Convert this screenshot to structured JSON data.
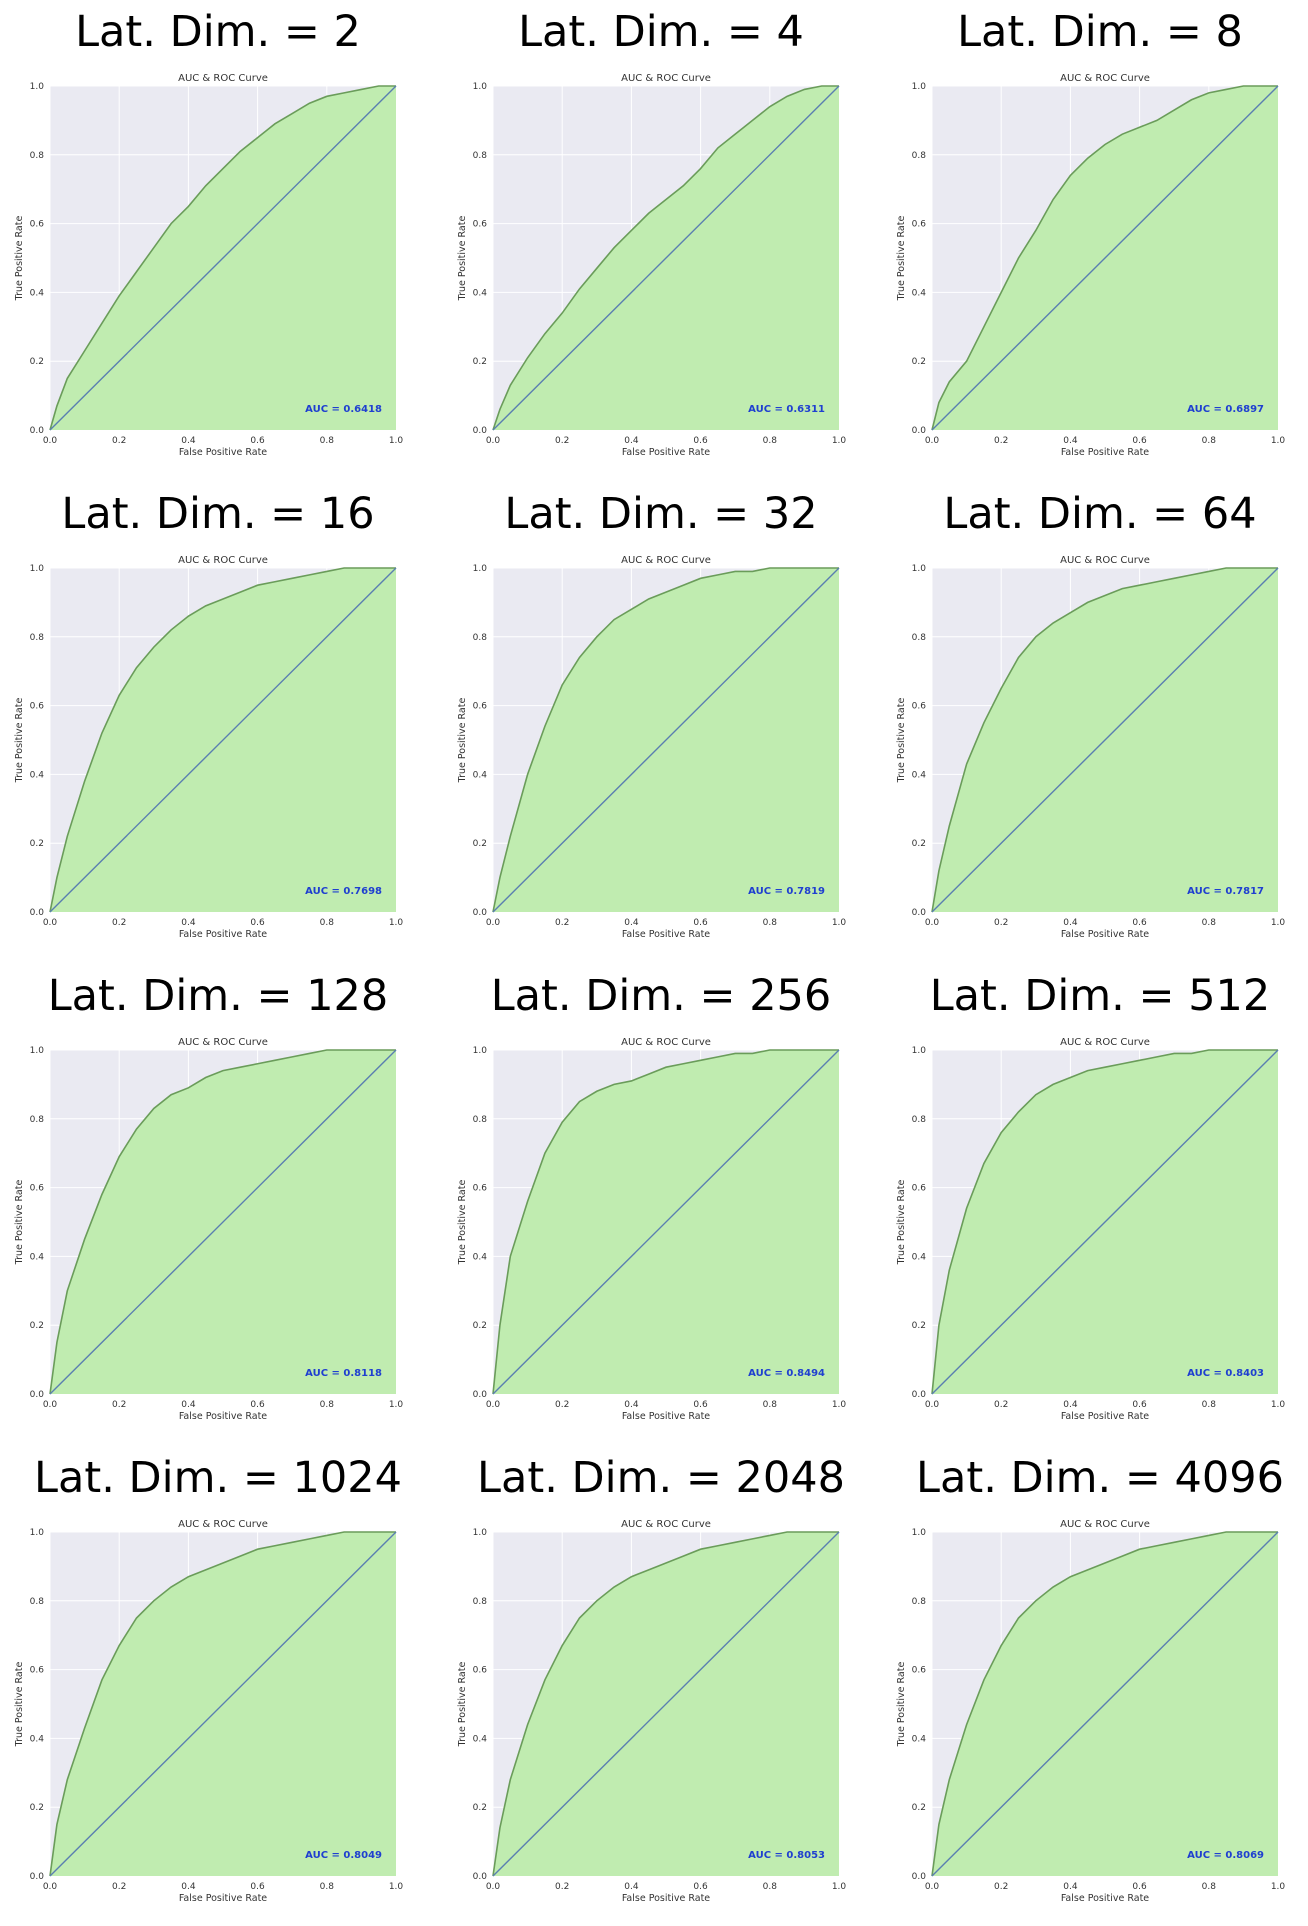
{
  "figure": {
    "panel_titles": [
      "Lat. Dim. = 2",
      "Lat. Dim. = 4",
      "Lat. Dim. = 8",
      "Lat. Dim. = 16",
      "Lat. Dim. = 32",
      "Lat. Dim. = 64",
      "Lat. Dim. = 128",
      "Lat. Dim. = 256",
      "Lat. Dim. = 512",
      "Lat. Dim. = 1024",
      "Lat. Dim. = 2048",
      "Lat. Dim. = 4096"
    ]
  },
  "chart_data": [
    {
      "type": "area",
      "panel_title": "Lat. Dim. = 2",
      "title": "AUC & ROC Curve",
      "xlabel": "False Positive Rate",
      "ylabel": "True Positive Rate",
      "xlim": [
        0,
        1
      ],
      "ylim": [
        0,
        1
      ],
      "xticks": [
        "0.0",
        "0.2",
        "0.4",
        "0.6",
        "0.8",
        "1.0"
      ],
      "yticks": [
        "0.0",
        "0.2",
        "0.4",
        "0.6",
        "0.8",
        "1.0"
      ],
      "grid": true,
      "auc_label": "AUC = 0.6418",
      "diagonal": [
        [
          0,
          0
        ],
        [
          1,
          1
        ]
      ],
      "roc": {
        "x": [
          0,
          0.02,
          0.05,
          0.1,
          0.15,
          0.2,
          0.25,
          0.3,
          0.35,
          0.4,
          0.45,
          0.5,
          0.55,
          0.6,
          0.65,
          0.7,
          0.75,
          0.8,
          0.85,
          0.9,
          0.95,
          1.0
        ],
        "y": [
          0,
          0.07,
          0.15,
          0.23,
          0.31,
          0.39,
          0.46,
          0.53,
          0.6,
          0.65,
          0.71,
          0.76,
          0.81,
          0.85,
          0.89,
          0.92,
          0.95,
          0.97,
          0.98,
          0.99,
          1.0,
          1.0
        ]
      }
    },
    {
      "type": "area",
      "panel_title": "Lat. Dim. = 4",
      "title": "AUC & ROC Curve",
      "xlabel": "False Positive Rate",
      "ylabel": "True Positive Rate",
      "xlim": [
        0,
        1
      ],
      "ylim": [
        0,
        1
      ],
      "xticks": [
        "0.0",
        "0.2",
        "0.4",
        "0.6",
        "0.8",
        "1.0"
      ],
      "yticks": [
        "0.0",
        "0.2",
        "0.4",
        "0.6",
        "0.8",
        "1.0"
      ],
      "grid": true,
      "auc_label": "AUC = 0.6311",
      "diagonal": [
        [
          0,
          0
        ],
        [
          1,
          1
        ]
      ],
      "roc": {
        "x": [
          0,
          0.02,
          0.05,
          0.1,
          0.15,
          0.2,
          0.25,
          0.3,
          0.35,
          0.4,
          0.45,
          0.5,
          0.55,
          0.6,
          0.65,
          0.7,
          0.75,
          0.8,
          0.85,
          0.9,
          0.95,
          1.0
        ],
        "y": [
          0,
          0.06,
          0.13,
          0.21,
          0.28,
          0.34,
          0.41,
          0.47,
          0.53,
          0.58,
          0.63,
          0.67,
          0.71,
          0.76,
          0.82,
          0.86,
          0.9,
          0.94,
          0.97,
          0.99,
          1.0,
          1.0
        ]
      }
    },
    {
      "type": "area",
      "panel_title": "Lat. Dim. = 8",
      "title": "AUC & ROC Curve",
      "xlabel": "False Positive Rate",
      "ylabel": "True Positive Rate",
      "xlim": [
        0,
        1
      ],
      "ylim": [
        0,
        1
      ],
      "xticks": [
        "0.0",
        "0.2",
        "0.4",
        "0.6",
        "0.8",
        "1.0"
      ],
      "yticks": [
        "0.0",
        "0.2",
        "0.4",
        "0.6",
        "0.8",
        "1.0"
      ],
      "grid": true,
      "auc_label": "AUC = 0.6897",
      "diagonal": [
        [
          0,
          0
        ],
        [
          1,
          1
        ]
      ],
      "roc": {
        "x": [
          0,
          0.02,
          0.05,
          0.1,
          0.15,
          0.2,
          0.25,
          0.3,
          0.35,
          0.4,
          0.45,
          0.5,
          0.55,
          0.6,
          0.65,
          0.7,
          0.75,
          0.8,
          0.85,
          0.9,
          0.95,
          1.0
        ],
        "y": [
          0,
          0.08,
          0.14,
          0.2,
          0.3,
          0.4,
          0.5,
          0.58,
          0.67,
          0.74,
          0.79,
          0.83,
          0.86,
          0.88,
          0.9,
          0.93,
          0.96,
          0.98,
          0.99,
          1.0,
          1.0,
          1.0
        ]
      }
    },
    {
      "type": "area",
      "panel_title": "Lat. Dim. = 16",
      "title": "AUC & ROC Curve",
      "xlabel": "False Positive Rate",
      "ylabel": "True Positive Rate",
      "xlim": [
        0,
        1
      ],
      "ylim": [
        0,
        1
      ],
      "xticks": [
        "0.0",
        "0.2",
        "0.4",
        "0.6",
        "0.8",
        "1.0"
      ],
      "yticks": [
        "0.0",
        "0.2",
        "0.4",
        "0.6",
        "0.8",
        "1.0"
      ],
      "grid": true,
      "auc_label": "AUC = 0.7698",
      "diagonal": [
        [
          0,
          0
        ],
        [
          1,
          1
        ]
      ],
      "roc": {
        "x": [
          0,
          0.02,
          0.05,
          0.1,
          0.15,
          0.2,
          0.25,
          0.3,
          0.35,
          0.4,
          0.45,
          0.5,
          0.55,
          0.6,
          0.65,
          0.7,
          0.75,
          0.8,
          0.85,
          0.9,
          0.95,
          1.0
        ],
        "y": [
          0,
          0.1,
          0.22,
          0.38,
          0.52,
          0.63,
          0.71,
          0.77,
          0.82,
          0.86,
          0.89,
          0.91,
          0.93,
          0.95,
          0.96,
          0.97,
          0.98,
          0.99,
          1.0,
          1.0,
          1.0,
          1.0
        ]
      }
    },
    {
      "type": "area",
      "panel_title": "Lat. Dim. = 32",
      "title": "AUC & ROC Curve",
      "xlabel": "False Positive Rate",
      "ylabel": "True Positive Rate",
      "xlim": [
        0,
        1
      ],
      "ylim": [
        0,
        1
      ],
      "xticks": [
        "0.0",
        "0.2",
        "0.4",
        "0.6",
        "0.8",
        "1.0"
      ],
      "yticks": [
        "0.0",
        "0.2",
        "0.4",
        "0.6",
        "0.8",
        "1.0"
      ],
      "grid": true,
      "auc_label": "AUC = 0.7819",
      "diagonal": [
        [
          0,
          0
        ],
        [
          1,
          1
        ]
      ],
      "roc": {
        "x": [
          0,
          0.02,
          0.05,
          0.1,
          0.15,
          0.2,
          0.25,
          0.3,
          0.35,
          0.4,
          0.45,
          0.5,
          0.55,
          0.6,
          0.65,
          0.7,
          0.75,
          0.8,
          0.85,
          0.9,
          0.95,
          1.0
        ],
        "y": [
          0,
          0.1,
          0.22,
          0.4,
          0.54,
          0.66,
          0.74,
          0.8,
          0.85,
          0.88,
          0.91,
          0.93,
          0.95,
          0.97,
          0.98,
          0.99,
          0.99,
          1.0,
          1.0,
          1.0,
          1.0,
          1.0
        ]
      }
    },
    {
      "type": "area",
      "panel_title": "Lat. Dim. = 64",
      "title": "AUC & ROC Curve",
      "xlabel": "False Positive Rate",
      "ylabel": "True Positive Rate",
      "xlim": [
        0,
        1
      ],
      "ylim": [
        0,
        1
      ],
      "xticks": [
        "0.0",
        "0.2",
        "0.4",
        "0.6",
        "0.8",
        "1.0"
      ],
      "yticks": [
        "0.0",
        "0.2",
        "0.4",
        "0.6",
        "0.8",
        "1.0"
      ],
      "grid": true,
      "auc_label": "AUC = 0.7817",
      "diagonal": [
        [
          0,
          0
        ],
        [
          1,
          1
        ]
      ],
      "roc": {
        "x": [
          0,
          0.02,
          0.05,
          0.1,
          0.15,
          0.2,
          0.25,
          0.3,
          0.35,
          0.4,
          0.45,
          0.5,
          0.55,
          0.6,
          0.65,
          0.7,
          0.75,
          0.8,
          0.85,
          0.9,
          0.95,
          1.0
        ],
        "y": [
          0,
          0.12,
          0.25,
          0.43,
          0.55,
          0.65,
          0.74,
          0.8,
          0.84,
          0.87,
          0.9,
          0.92,
          0.94,
          0.95,
          0.96,
          0.97,
          0.98,
          0.99,
          1.0,
          1.0,
          1.0,
          1.0
        ]
      }
    },
    {
      "type": "area",
      "panel_title": "Lat. Dim. = 128",
      "title": "AUC & ROC Curve",
      "xlabel": "False Positive Rate",
      "ylabel": "True Positive Rate",
      "xlim": [
        0,
        1
      ],
      "ylim": [
        0,
        1
      ],
      "xticks": [
        "0.0",
        "0.2",
        "0.4",
        "0.6",
        "0.8",
        "1.0"
      ],
      "yticks": [
        "0.0",
        "0.2",
        "0.4",
        "0.6",
        "0.8",
        "1.0"
      ],
      "grid": true,
      "auc_label": "AUC = 0.8118",
      "diagonal": [
        [
          0,
          0
        ],
        [
          1,
          1
        ]
      ],
      "roc": {
        "x": [
          0,
          0.02,
          0.05,
          0.1,
          0.15,
          0.2,
          0.25,
          0.3,
          0.35,
          0.4,
          0.45,
          0.5,
          0.55,
          0.6,
          0.65,
          0.7,
          0.75,
          0.8,
          0.85,
          0.9,
          0.95,
          1.0
        ],
        "y": [
          0,
          0.15,
          0.3,
          0.45,
          0.58,
          0.69,
          0.77,
          0.83,
          0.87,
          0.89,
          0.92,
          0.94,
          0.95,
          0.96,
          0.97,
          0.98,
          0.99,
          1.0,
          1.0,
          1.0,
          1.0,
          1.0
        ]
      }
    },
    {
      "type": "area",
      "panel_title": "Lat. Dim. = 256",
      "title": "AUC & ROC Curve",
      "xlabel": "False Positive Rate",
      "ylabel": "True Positive Rate",
      "xlim": [
        0,
        1
      ],
      "ylim": [
        0,
        1
      ],
      "xticks": [
        "0.0",
        "0.2",
        "0.4",
        "0.6",
        "0.8",
        "1.0"
      ],
      "yticks": [
        "0.0",
        "0.2",
        "0.4",
        "0.6",
        "0.8",
        "1.0"
      ],
      "grid": true,
      "auc_label": "AUC = 0.8494",
      "diagonal": [
        [
          0,
          0
        ],
        [
          1,
          1
        ]
      ],
      "roc": {
        "x": [
          0,
          0.02,
          0.05,
          0.1,
          0.15,
          0.2,
          0.25,
          0.3,
          0.35,
          0.4,
          0.45,
          0.5,
          0.55,
          0.6,
          0.65,
          0.7,
          0.75,
          0.8,
          0.85,
          0.9,
          0.95,
          1.0
        ],
        "y": [
          0,
          0.2,
          0.4,
          0.56,
          0.7,
          0.79,
          0.85,
          0.88,
          0.9,
          0.91,
          0.93,
          0.95,
          0.96,
          0.97,
          0.98,
          0.99,
          0.99,
          1.0,
          1.0,
          1.0,
          1.0,
          1.0
        ]
      }
    },
    {
      "type": "area",
      "panel_title": "Lat. Dim. = 512",
      "title": "AUC & ROC Curve",
      "xlabel": "False Positive Rate",
      "ylabel": "True Positive Rate",
      "xlim": [
        0,
        1
      ],
      "ylim": [
        0,
        1
      ],
      "xticks": [
        "0.0",
        "0.2",
        "0.4",
        "0.6",
        "0.8",
        "1.0"
      ],
      "yticks": [
        "0.0",
        "0.2",
        "0.4",
        "0.6",
        "0.8",
        "1.0"
      ],
      "grid": true,
      "auc_label": "AUC = 0.8403",
      "diagonal": [
        [
          0,
          0
        ],
        [
          1,
          1
        ]
      ],
      "roc": {
        "x": [
          0,
          0.02,
          0.05,
          0.1,
          0.15,
          0.2,
          0.25,
          0.3,
          0.35,
          0.4,
          0.45,
          0.5,
          0.55,
          0.6,
          0.65,
          0.7,
          0.75,
          0.8,
          0.85,
          0.9,
          0.95,
          1.0
        ],
        "y": [
          0,
          0.2,
          0.36,
          0.54,
          0.67,
          0.76,
          0.82,
          0.87,
          0.9,
          0.92,
          0.94,
          0.95,
          0.96,
          0.97,
          0.98,
          0.99,
          0.99,
          1.0,
          1.0,
          1.0,
          1.0,
          1.0
        ]
      }
    },
    {
      "type": "area",
      "panel_title": "Lat. Dim. = 1024",
      "title": "AUC & ROC Curve",
      "xlabel": "False Positive Rate",
      "ylabel": "True Positive Rate",
      "xlim": [
        0,
        1
      ],
      "ylim": [
        0,
        1
      ],
      "xticks": [
        "0.0",
        "0.2",
        "0.4",
        "0.6",
        "0.8",
        "1.0"
      ],
      "yticks": [
        "0.0",
        "0.2",
        "0.4",
        "0.6",
        "0.8",
        "1.0"
      ],
      "grid": true,
      "auc_label": "AUC = 0.8049",
      "diagonal": [
        [
          0,
          0
        ],
        [
          1,
          1
        ]
      ],
      "roc": {
        "x": [
          0,
          0.02,
          0.05,
          0.1,
          0.15,
          0.2,
          0.25,
          0.3,
          0.35,
          0.4,
          0.45,
          0.5,
          0.55,
          0.6,
          0.65,
          0.7,
          0.75,
          0.8,
          0.85,
          0.9,
          0.95,
          1.0
        ],
        "y": [
          0,
          0.15,
          0.28,
          0.43,
          0.57,
          0.67,
          0.75,
          0.8,
          0.84,
          0.87,
          0.89,
          0.91,
          0.93,
          0.95,
          0.96,
          0.97,
          0.98,
          0.99,
          1.0,
          1.0,
          1.0,
          1.0
        ]
      }
    },
    {
      "type": "area",
      "panel_title": "Lat. Dim. = 2048",
      "title": "AUC & ROC Curve",
      "xlabel": "False Positive Rate",
      "ylabel": "True Positive Rate",
      "xlim": [
        0,
        1
      ],
      "ylim": [
        0,
        1
      ],
      "xticks": [
        "0.0",
        "0.2",
        "0.4",
        "0.6",
        "0.8",
        "1.0"
      ],
      "yticks": [
        "0.0",
        "0.2",
        "0.4",
        "0.6",
        "0.8",
        "1.0"
      ],
      "grid": true,
      "auc_label": "AUC = 0.8053",
      "diagonal": [
        [
          0,
          0
        ],
        [
          1,
          1
        ]
      ],
      "roc": {
        "x": [
          0,
          0.02,
          0.05,
          0.1,
          0.15,
          0.2,
          0.25,
          0.3,
          0.35,
          0.4,
          0.45,
          0.5,
          0.55,
          0.6,
          0.65,
          0.7,
          0.75,
          0.8,
          0.85,
          0.9,
          0.95,
          1.0
        ],
        "y": [
          0,
          0.14,
          0.28,
          0.44,
          0.57,
          0.67,
          0.75,
          0.8,
          0.84,
          0.87,
          0.89,
          0.91,
          0.93,
          0.95,
          0.96,
          0.97,
          0.98,
          0.99,
          1.0,
          1.0,
          1.0,
          1.0
        ]
      }
    },
    {
      "type": "area",
      "panel_title": "Lat. Dim. = 4096",
      "title": "AUC & ROC Curve",
      "xlabel": "False Positive Rate",
      "ylabel": "True Positive Rate",
      "xlim": [
        0,
        1
      ],
      "ylim": [
        0,
        1
      ],
      "xticks": [
        "0.0",
        "0.2",
        "0.4",
        "0.6",
        "0.8",
        "1.0"
      ],
      "yticks": [
        "0.0",
        "0.2",
        "0.4",
        "0.6",
        "0.8",
        "1.0"
      ],
      "grid": true,
      "auc_label": "AUC = 0.8069",
      "diagonal": [
        [
          0,
          0
        ],
        [
          1,
          1
        ]
      ],
      "roc": {
        "x": [
          0,
          0.02,
          0.05,
          0.1,
          0.15,
          0.2,
          0.25,
          0.3,
          0.35,
          0.4,
          0.45,
          0.5,
          0.55,
          0.6,
          0.65,
          0.7,
          0.75,
          0.8,
          0.85,
          0.9,
          0.95,
          1.0
        ],
        "y": [
          0,
          0.15,
          0.28,
          0.44,
          0.57,
          0.67,
          0.75,
          0.8,
          0.84,
          0.87,
          0.89,
          0.91,
          0.93,
          0.95,
          0.96,
          0.97,
          0.98,
          0.99,
          1.0,
          1.0,
          1.0,
          1.0
        ]
      }
    }
  ],
  "style": {
    "plot_bg": "#eaeaf2",
    "grid_color": "#ffffff",
    "fill_color": "#c0ecb0",
    "curve_color": "#6a9c5a",
    "diagonal_color": "#5a7fb0",
    "auc_text_color": "#1f3fd0",
    "text_color": "#333333"
  }
}
